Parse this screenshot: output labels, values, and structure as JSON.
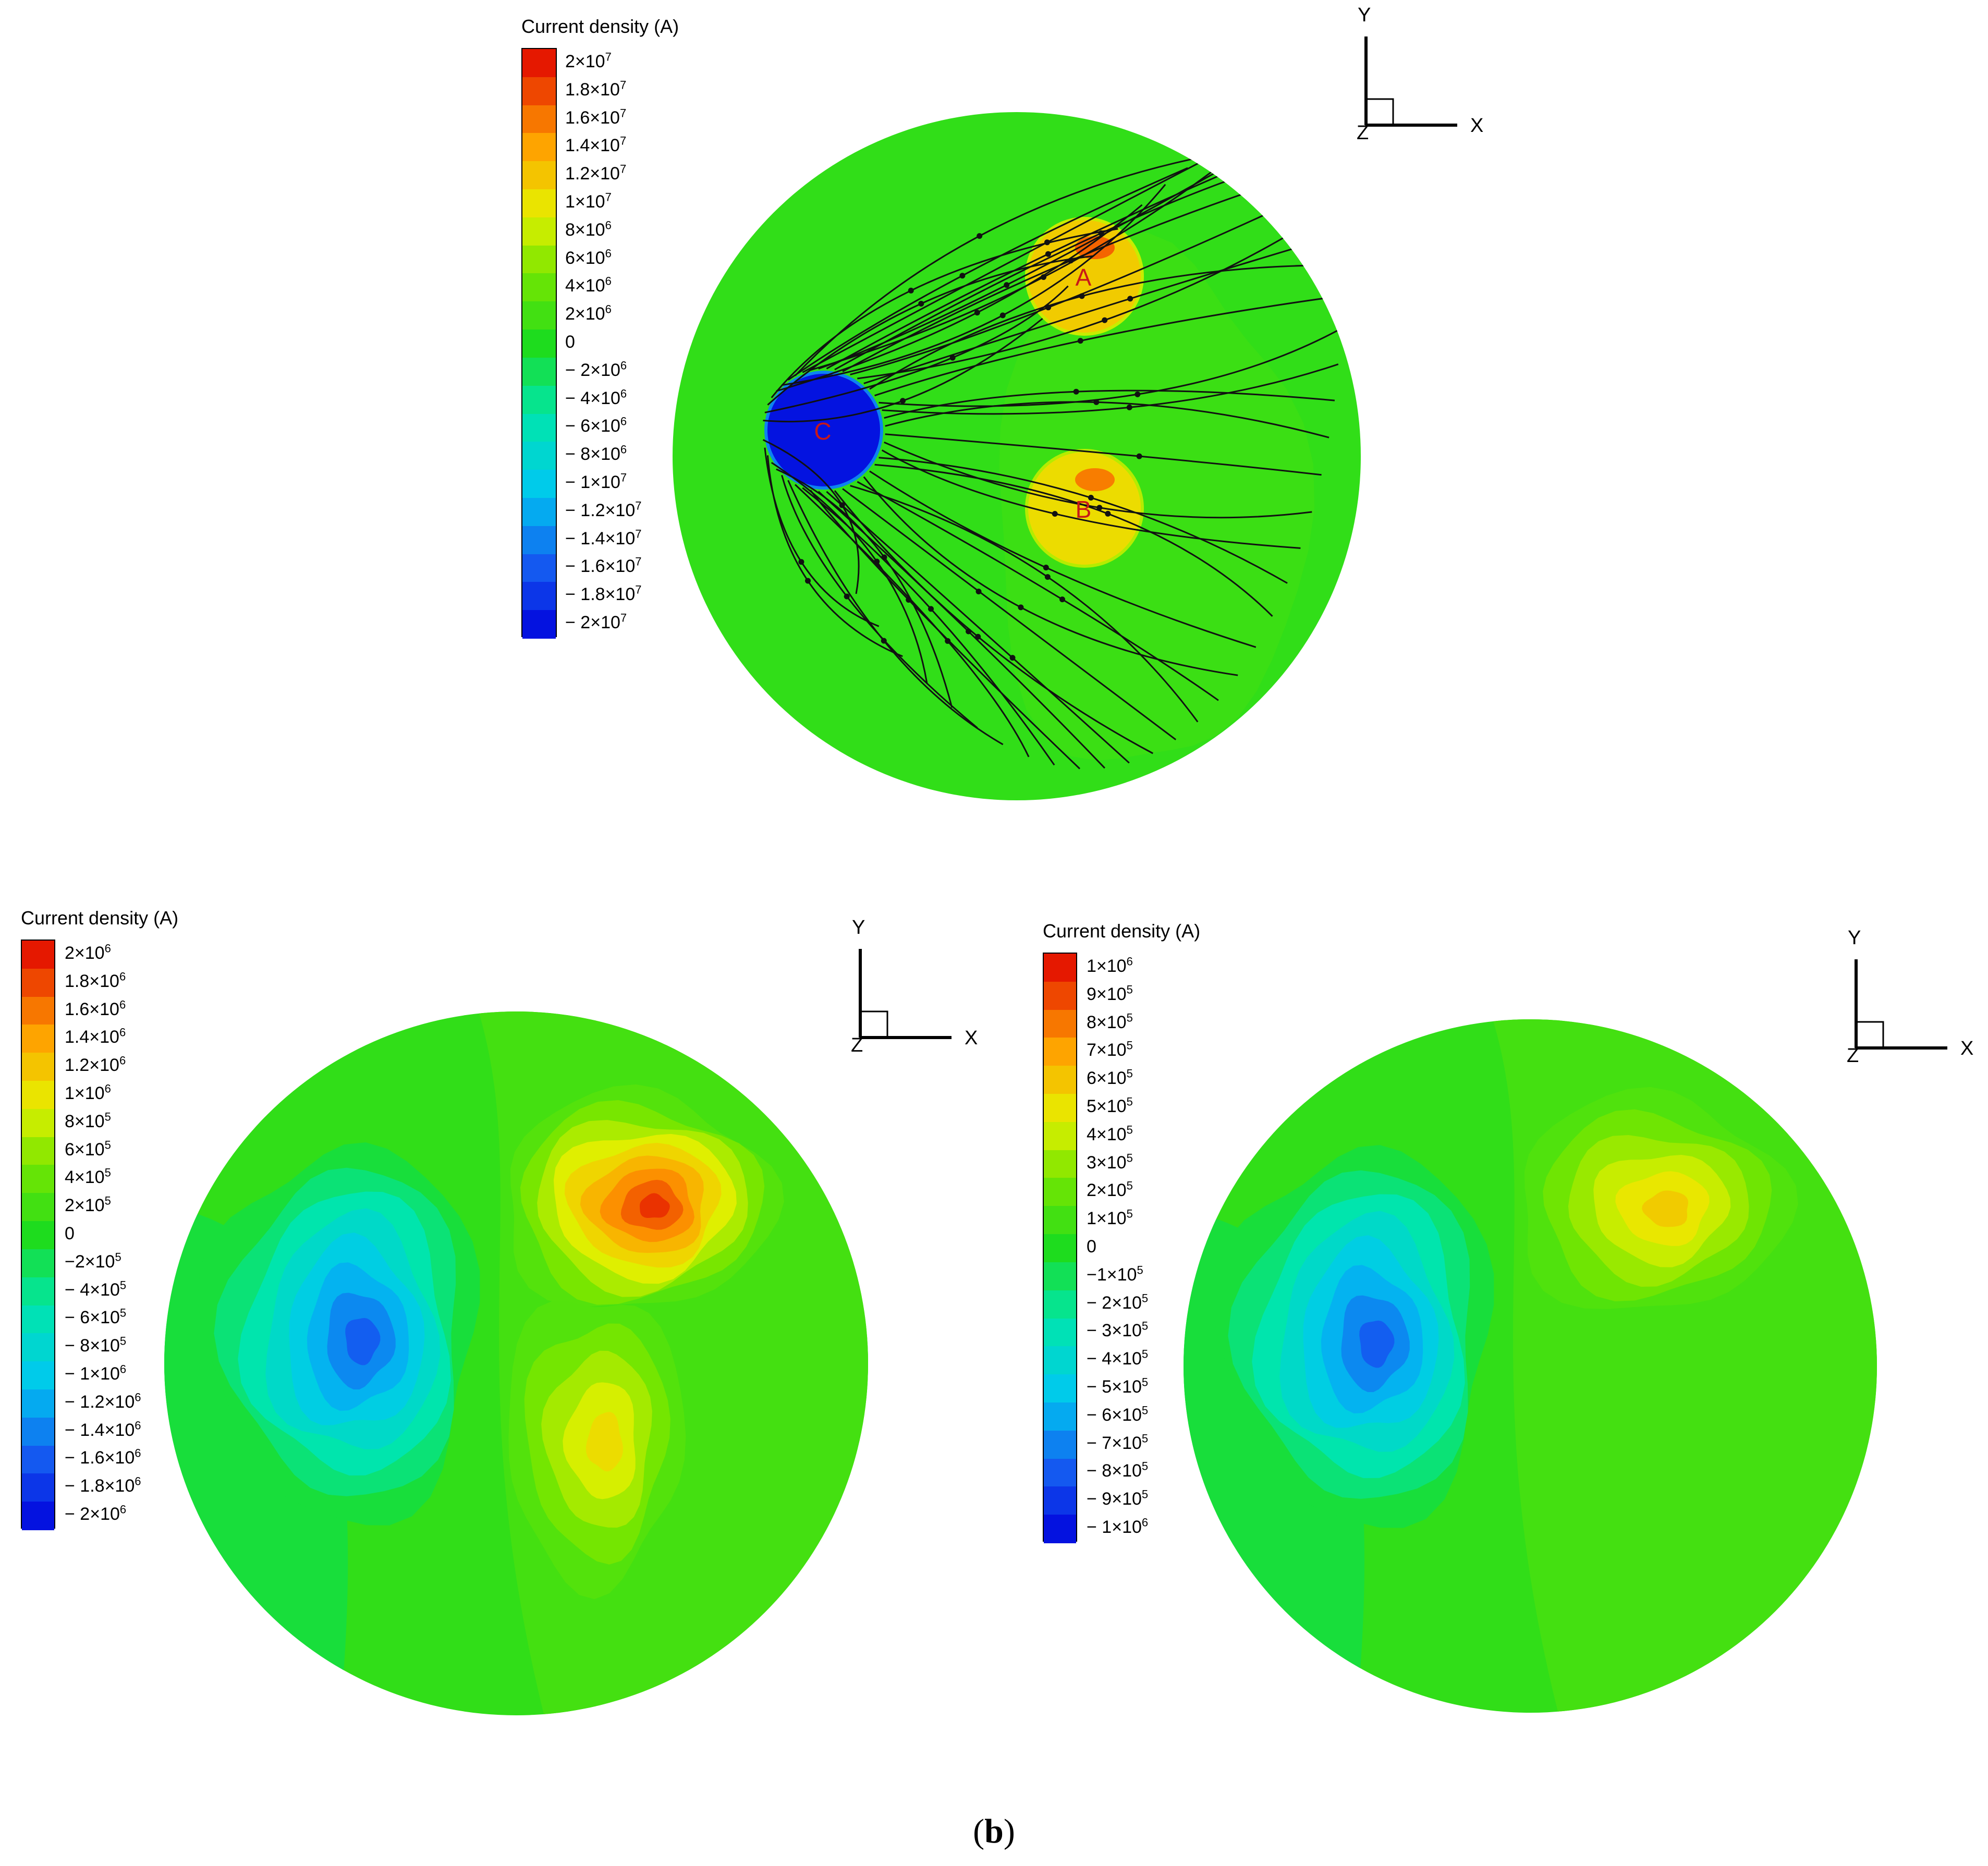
{
  "figure": {
    "caption_open": "(",
    "caption_letter": "b",
    "caption_close": ")"
  },
  "axes_triad": {
    "y": "Y",
    "x": "X",
    "z": "Z"
  },
  "chart_data": [
    {
      "type": "heatmap",
      "panel": "top",
      "colorbar_title": "Current density (A)",
      "colorbar_range": [
        -20000000,
        20000000
      ],
      "colorbar_ticks": [
        {
          "mant": "2",
          "exp": "7"
        },
        {
          "mant": "1.8",
          "exp": "7"
        },
        {
          "mant": "1.6",
          "exp": "7"
        },
        {
          "mant": "1.4",
          "exp": "7"
        },
        {
          "mant": "1.2",
          "exp": "7"
        },
        {
          "mant": "1",
          "exp": "7"
        },
        {
          "mant": "8",
          "exp": "6"
        },
        {
          "mant": "6",
          "exp": "6"
        },
        {
          "mant": "4",
          "exp": "6"
        },
        {
          "mant": "2",
          "exp": "6"
        },
        {
          "mant": "0",
          "exp": ""
        },
        {
          "mant": "− 2",
          "exp": "6"
        },
        {
          "mant": "− 4",
          "exp": "6"
        },
        {
          "mant": "− 6",
          "exp": "6"
        },
        {
          "mant": "− 8",
          "exp": "6"
        },
        {
          "mant": "− 1",
          "exp": "7"
        },
        {
          "mant": "− 1.2",
          "exp": "7"
        },
        {
          "mant": "− 1.4",
          "exp": "7"
        },
        {
          "mant": "− 1.6",
          "exp": "7"
        },
        {
          "mant": "− 1.8",
          "exp": "7"
        },
        {
          "mant": "− 2",
          "exp": "7"
        }
      ],
      "background_level": 0.05,
      "electrodes": [
        {
          "label": "A",
          "level": 0.55
        },
        {
          "label": "B",
          "level": 0.5
        },
        {
          "label": "C",
          "level": -0.95
        }
      ],
      "streamlines": true
    },
    {
      "type": "heatmap",
      "panel": "bottom-left",
      "colorbar_title": "Current density (A)",
      "colorbar_range": [
        -2000000,
        2000000
      ],
      "colorbar_ticks": [
        {
          "mant": "2",
          "exp": "6"
        },
        {
          "mant": "1.8",
          "exp": "6"
        },
        {
          "mant": "1.6",
          "exp": "6"
        },
        {
          "mant": "1.4",
          "exp": "6"
        },
        {
          "mant": "1.2",
          "exp": "6"
        },
        {
          "mant": "1",
          "exp": "6"
        },
        {
          "mant": "8",
          "exp": "5"
        },
        {
          "mant": "6",
          "exp": "5"
        },
        {
          "mant": "4",
          "exp": "5"
        },
        {
          "mant": "2",
          "exp": "5"
        },
        {
          "mant": "0",
          "exp": ""
        },
        {
          "mant": "−2",
          "exp": "5"
        },
        {
          "mant": "− 4",
          "exp": "5"
        },
        {
          "mant": "− 6",
          "exp": "5"
        },
        {
          "mant": "− 8",
          "exp": "5"
        },
        {
          "mant": "− 1",
          "exp": "6"
        },
        {
          "mant": "− 1.2",
          "exp": "6"
        },
        {
          "mant": "− 1.4",
          "exp": "6"
        },
        {
          "mant": "− 1.6",
          "exp": "6"
        },
        {
          "mant": "− 1.8",
          "exp": "6"
        },
        {
          "mant": "− 2",
          "exp": "6"
        }
      ],
      "background_level": 0.05,
      "regions": [
        {
          "name": "positive-upper",
          "peak_level": 0.9
        },
        {
          "name": "positive-lower",
          "peak_level": 0.5
        },
        {
          "name": "negative-left",
          "peak_level": -0.75
        }
      ]
    },
    {
      "type": "heatmap",
      "panel": "bottom-right",
      "colorbar_title": "Current density (A)",
      "colorbar_range": [
        -1000000,
        1000000
      ],
      "colorbar_ticks": [
        {
          "mant": "1",
          "exp": "6"
        },
        {
          "mant": "9",
          "exp": "5"
        },
        {
          "mant": "8",
          "exp": "5"
        },
        {
          "mant": "7",
          "exp": "5"
        },
        {
          "mant": "6",
          "exp": "5"
        },
        {
          "mant": "5",
          "exp": "5"
        },
        {
          "mant": "4",
          "exp": "5"
        },
        {
          "mant": "3",
          "exp": "5"
        },
        {
          "mant": "2",
          "exp": "5"
        },
        {
          "mant": "1",
          "exp": "5"
        },
        {
          "mant": "0",
          "exp": ""
        },
        {
          "mant": "−1",
          "exp": "5"
        },
        {
          "mant": "− 2",
          "exp": "5"
        },
        {
          "mant": "− 3",
          "exp": "5"
        },
        {
          "mant": "− 4",
          "exp": "5"
        },
        {
          "mant": "− 5",
          "exp": "5"
        },
        {
          "mant": "− 6",
          "exp": "5"
        },
        {
          "mant": "− 7",
          "exp": "5"
        },
        {
          "mant": "− 8",
          "exp": "5"
        },
        {
          "mant": "− 9",
          "exp": "5"
        },
        {
          "mant": "− 1",
          "exp": "6"
        }
      ],
      "background_level": 0.05,
      "regions": [
        {
          "name": "positive-upper",
          "peak_level": 0.55
        },
        {
          "name": "negative-left",
          "peak_level": -0.75
        }
      ]
    }
  ]
}
